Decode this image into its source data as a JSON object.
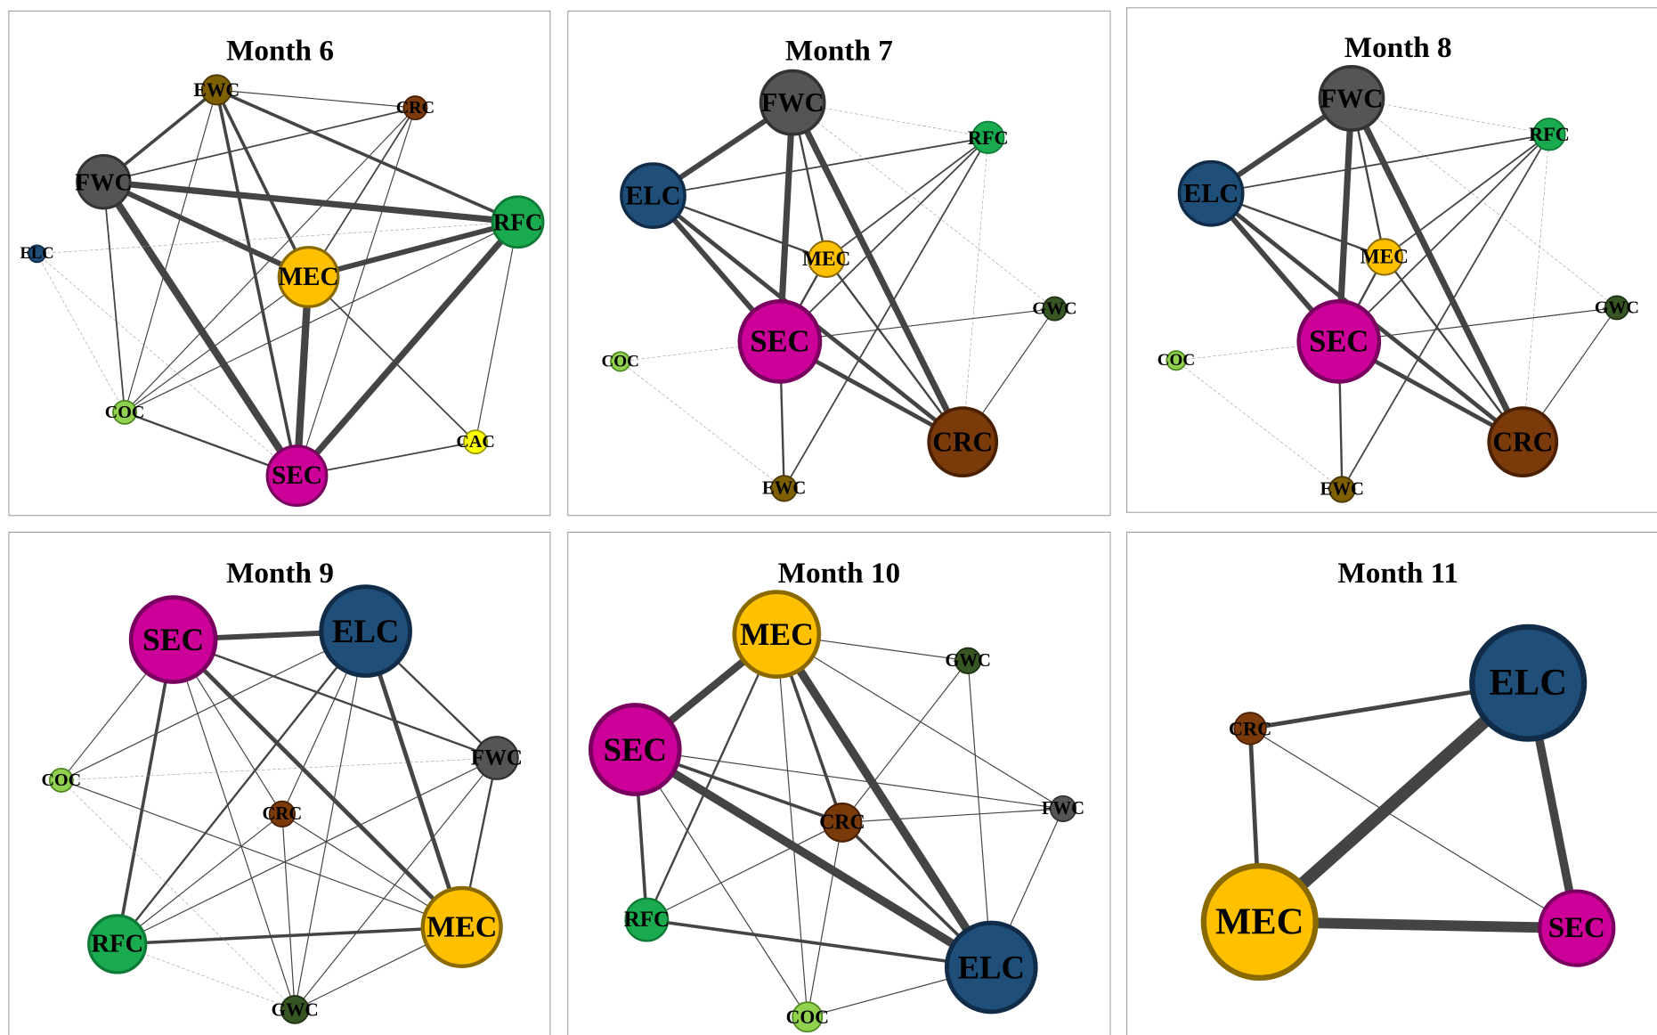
{
  "panels": [
    {
      "title": "Month 6",
      "nodes": [
        "EWC",
        "CRC",
        "FWC",
        "RFC",
        "ELC",
        "MEC",
        "COC",
        "CAC",
        "SEC"
      ]
    },
    {
      "title": "Month 7",
      "nodes": [
        "FWC",
        "RFC",
        "ELC",
        "MEC",
        "GWC",
        "COC",
        "SEC",
        "CRC",
        "EWC"
      ]
    },
    {
      "title": "Month 8",
      "nodes": [
        "FWC",
        "RFC",
        "ELC",
        "MEC",
        "GWC",
        "COC",
        "SEC",
        "CRC",
        "EWC"
      ]
    },
    {
      "title": "Month 9",
      "nodes": [
        "SEC",
        "ELC",
        "FWC",
        "COC",
        "CRC",
        "MEC",
        "RFC",
        "GWC"
      ]
    },
    {
      "title": "Month 10",
      "nodes": [
        "MEC",
        "GWC",
        "SEC",
        "CRC",
        "FWC",
        "RFC",
        "ELC",
        "COC"
      ]
    },
    {
      "title": "Month 11",
      "nodes": [
        "ELC",
        "CRC",
        "MEC",
        "SEC"
      ]
    }
  ]
}
